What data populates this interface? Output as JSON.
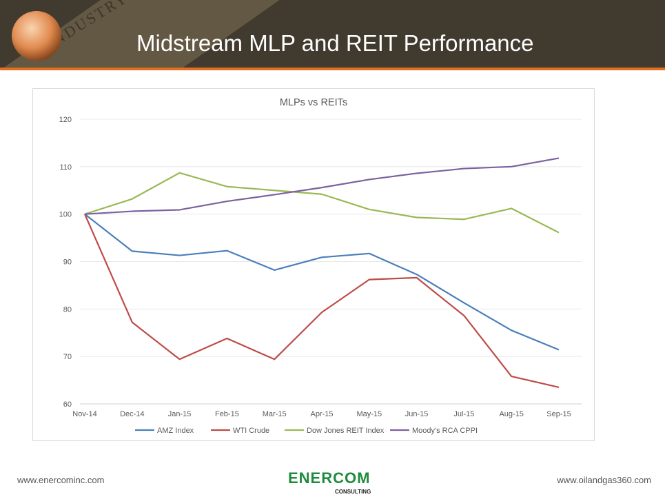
{
  "header": {
    "title": "Midstream MLP and REIT Performance",
    "band_text": "INDUSTRY"
  },
  "footer": {
    "left": "www.enercominc.com",
    "right": "www.oilandgas360.com",
    "logo": "ENERCOM",
    "logo_sub": "CONSULTING"
  },
  "colors": {
    "header_bg": "#413a2f",
    "accent": "#e07020"
  },
  "chart_data": {
    "type": "line",
    "title": "MLPs vs REITs",
    "categories": [
      "Nov-14",
      "Dec-14",
      "Jan-15",
      "Feb-15",
      "Mar-15",
      "Apr-15",
      "May-15",
      "Jun-15",
      "Jul-15",
      "Aug-15",
      "Sep-15"
    ],
    "ylim": [
      60,
      120
    ],
    "yticks": [
      60,
      70,
      80,
      90,
      100,
      110,
      120
    ],
    "grid": true,
    "legend": "bottom",
    "series": [
      {
        "name": "AMZ Index",
        "color": "#4a7ebb",
        "values": [
          100,
          92.2,
          91.3,
          92.3,
          88.2,
          90.9,
          91.7,
          87.3,
          81.3,
          75.5,
          71.4
        ]
      },
      {
        "name": "WTI Crude",
        "color": "#be4b48",
        "values": [
          100,
          77.2,
          69.4,
          73.8,
          69.4,
          79.3,
          86.2,
          86.6,
          78.6,
          65.8,
          63.5
        ]
      },
      {
        "name": "Dow Jones REIT Index",
        "color": "#98b954",
        "values": [
          100,
          103.2,
          108.7,
          105.8,
          105.0,
          104.2,
          101.0,
          99.3,
          98.9,
          101.2,
          96.1
        ]
      },
      {
        "name": "Moody's RCA CPPI",
        "color": "#7d60a0",
        "values": [
          100,
          100.6,
          100.9,
          102.7,
          104.1,
          105.6,
          107.3,
          108.6,
          109.6,
          110.0,
          111.8
        ]
      }
    ]
  }
}
